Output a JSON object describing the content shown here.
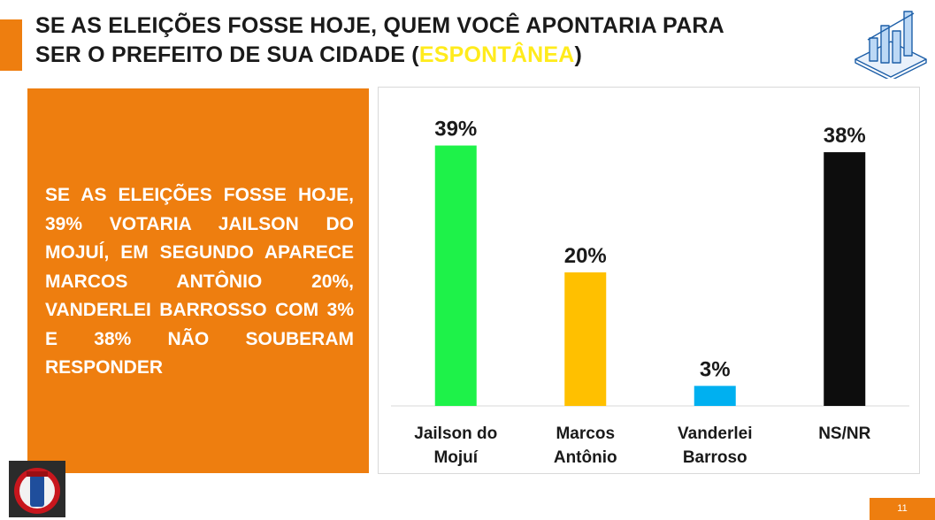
{
  "title": {
    "line1": "SE AS ELEIÇÕES FOSSE HOJE, QUEM VOCÊ APONTARIA PARA",
    "line2_prefix": "SER O PREFEITO DE SUA CIDADE (",
    "line2_highlight": "ESPONTÂNEA",
    "line2_suffix": ")",
    "highlight_color": "#ffeb1c"
  },
  "summary_text": "SE AS ELEIÇÕES FOSSE HOJE, 39% VOTARIA JAILSON DO MOJUÍ, EM SEGUNDO APARECE MARCOS ANTÔNIO 20%, VANDERLEI BARROSSO COM 3% E 38% NÃO SOUBERAM RESPONDER",
  "page_number": "11",
  "icons": {
    "top_right": "bar-chart-icon",
    "bottom_left": "company-logo"
  },
  "colors": {
    "accent": "#ee7e0f",
    "text": "#1a1a1a"
  },
  "chart_data": {
    "type": "bar",
    "categories": [
      [
        "Jailson do",
        "Mojuí"
      ],
      [
        "Marcos",
        "Antônio"
      ],
      [
        "Vanderlei",
        "Barroso"
      ],
      [
        "NS/NR"
      ]
    ],
    "values": [
      39,
      20,
      3,
      38
    ],
    "value_labels": [
      "39%",
      "20%",
      "3%",
      "38%"
    ],
    "bar_colors": [
      "#1ef249",
      "#ffc000",
      "#00b0f0",
      "#0d0d0d"
    ],
    "unit": "%",
    "ylim": [
      0,
      40
    ],
    "grid": false,
    "legend": "none"
  }
}
